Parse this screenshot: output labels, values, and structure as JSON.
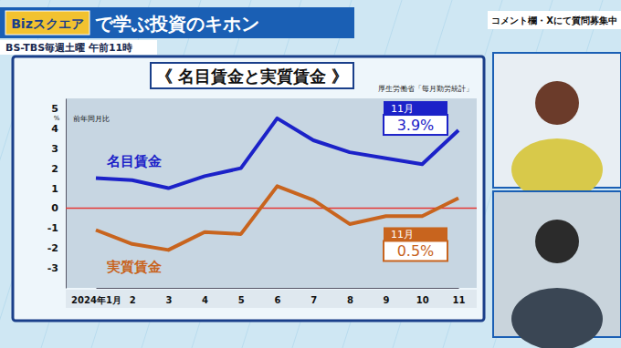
{
  "page": {
    "logo": "Bizスクエア",
    "title": "で学ぶ投資のキホン",
    "schedule": "BS-TBS毎週土曜 午前11時",
    "notice": "コメント欄・Xにて質問募集中"
  },
  "chart_data": {
    "type": "line",
    "title": "《 名目賃金と実質賃金 》",
    "source": "厚生労働省「毎月勤労統計」",
    "ylabel": "前年同月比",
    "yunit": "%",
    "categories": [
      "2024年1月",
      "2",
      "3",
      "4",
      "5",
      "6",
      "7",
      "8",
      "9",
      "10",
      "11"
    ],
    "series": [
      {
        "name": "名目賃金",
        "color": "#1c22c8",
        "values": [
          1.5,
          1.4,
          1.0,
          1.6,
          2.0,
          4.5,
          3.4,
          2.8,
          2.5,
          2.2,
          3.9
        ]
      },
      {
        "name": "実質賃金",
        "color": "#c8641e",
        "values": [
          -1.1,
          -1.8,
          -2.1,
          -1.2,
          -1.3,
          1.1,
          0.4,
          -0.8,
          -0.4,
          -0.4,
          0.5
        ]
      }
    ],
    "ylim": [
      -4,
      5.5
    ],
    "yticks": [
      5,
      4,
      3,
      2,
      1,
      0,
      -1,
      -2,
      -3
    ],
    "grid": false,
    "legend": "inline",
    "reference_line": {
      "value": 0,
      "color": "#e53935"
    },
    "annotations": [
      {
        "label": "11月",
        "text": "3.9%"
      },
      {
        "label": "11月",
        "text": "0.5%"
      }
    ]
  }
}
